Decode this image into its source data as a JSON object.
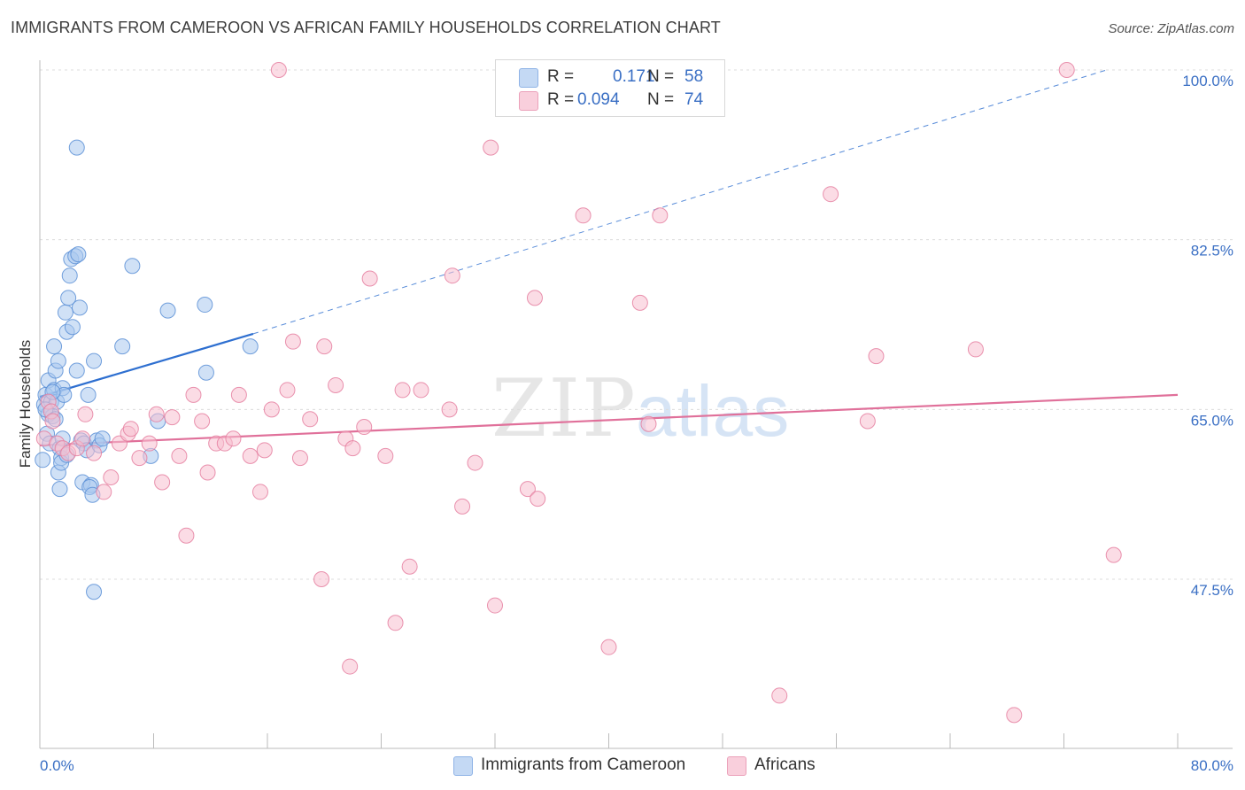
{
  "title": "IMMIGRANTS FROM CAMEROON VS AFRICAN FAMILY HOUSEHOLDS CORRELATION CHART",
  "source": "Source: ZipAtlas.com",
  "watermark": {
    "zip": "ZIP",
    "atlas": "atlas"
  },
  "legend": {
    "rows": [
      {
        "r_label": "R =",
        "r_value": "0.171",
        "n_label": "N =",
        "n_value": "58"
      },
      {
        "r_label": "R =",
        "r_value": "0.094",
        "n_label": "N =",
        "n_value": "74"
      }
    ]
  },
  "colors": {
    "blue_fill": "#aac8ef",
    "blue_stroke": "#5b8fd6",
    "blue_line": "#2e6fd0",
    "pink_fill": "#f7bfd0",
    "pink_stroke": "#e57fa0",
    "pink_line": "#e0709a",
    "tick_text": "#3a6fc4"
  },
  "chart_data": {
    "type": "scatter",
    "title": "IMMIGRANTS FROM CAMEROON VS AFRICAN FAMILY HOUSEHOLDS CORRELATION CHART",
    "xlabel": "",
    "ylabel": "Family Households",
    "xlim": [
      0,
      80
    ],
    "ylim": [
      30,
      101
    ],
    "x_tick_labels": [
      "0.0%",
      "80.0%"
    ],
    "y_ticks": [
      47.5,
      65.0,
      82.5,
      100.0
    ],
    "y_tick_labels": [
      "47.5%",
      "65.0%",
      "82.5%",
      "100.0%"
    ],
    "grid": "horizontal dashed",
    "legend_position": "top-center",
    "series": [
      {
        "name": "Immigrants from Cameroon",
        "color": "#aac8ef",
        "points": [
          [
            0.2,
            59.8
          ],
          [
            0.3,
            65.5
          ],
          [
            0.4,
            66.5
          ],
          [
            0.5,
            62.5
          ],
          [
            0.6,
            64.5
          ],
          [
            0.6,
            68.0
          ],
          [
            0.7,
            61.5
          ],
          [
            0.8,
            65.8
          ],
          [
            0.9,
            64.3
          ],
          [
            1.0,
            71.5
          ],
          [
            1.0,
            67.0
          ],
          [
            1.1,
            69.0
          ],
          [
            1.2,
            65.8
          ],
          [
            1.3,
            70.0
          ],
          [
            1.3,
            58.5
          ],
          [
            1.4,
            61.0
          ],
          [
            1.5,
            60.0
          ],
          [
            1.5,
            59.5
          ],
          [
            1.6,
            67.2
          ],
          [
            1.7,
            66.5
          ],
          [
            1.8,
            75.0
          ],
          [
            1.9,
            73.0
          ],
          [
            2.0,
            76.5
          ],
          [
            2.1,
            78.8
          ],
          [
            2.2,
            80.5
          ],
          [
            2.3,
            73.5
          ],
          [
            2.5,
            80.8
          ],
          [
            2.6,
            69.0
          ],
          [
            2.7,
            81.0
          ],
          [
            2.8,
            75.5
          ],
          [
            2.9,
            61.8
          ],
          [
            3.0,
            57.5
          ],
          [
            3.1,
            61.5
          ],
          [
            3.3,
            60.8
          ],
          [
            3.4,
            66.5
          ],
          [
            3.6,
            57.2
          ],
          [
            3.8,
            70.0
          ],
          [
            4.0,
            61.8
          ],
          [
            4.2,
            61.3
          ],
          [
            5.8,
            71.5
          ],
          [
            6.5,
            79.8
          ],
          [
            7.8,
            60.2
          ],
          [
            8.3,
            63.8
          ],
          [
            9.0,
            75.2
          ],
          [
            11.6,
            75.8
          ],
          [
            11.7,
            68.8
          ],
          [
            14.8,
            71.5
          ],
          [
            2.6,
            92.0
          ],
          [
            3.5,
            57.0
          ],
          [
            3.7,
            56.2
          ],
          [
            3.8,
            46.2
          ],
          [
            0.9,
            66.8
          ],
          [
            1.6,
            62.0
          ],
          [
            1.9,
            60.3
          ],
          [
            4.4,
            62.0
          ],
          [
            0.4,
            65.0
          ],
          [
            1.1,
            64.0
          ],
          [
            1.4,
            56.8
          ]
        ]
      },
      {
        "name": "Africans",
        "color": "#f7bfd0",
        "points": [
          [
            0.3,
            62.0
          ],
          [
            0.6,
            65.8
          ],
          [
            0.8,
            64.8
          ],
          [
            1.2,
            61.5
          ],
          [
            1.6,
            61.0
          ],
          [
            2.0,
            60.5
          ],
          [
            2.6,
            61.0
          ],
          [
            3.0,
            62.0
          ],
          [
            3.2,
            64.5
          ],
          [
            3.8,
            60.5
          ],
          [
            4.5,
            56.5
          ],
          [
            5.0,
            58.0
          ],
          [
            5.6,
            61.5
          ],
          [
            6.2,
            62.5
          ],
          [
            6.4,
            63.0
          ],
          [
            7.0,
            60.0
          ],
          [
            7.7,
            61.5
          ],
          [
            8.2,
            64.5
          ],
          [
            8.6,
            57.5
          ],
          [
            9.3,
            64.2
          ],
          [
            9.8,
            60.2
          ],
          [
            10.3,
            52.0
          ],
          [
            10.8,
            66.5
          ],
          [
            11.4,
            63.8
          ],
          [
            11.8,
            58.5
          ],
          [
            12.4,
            61.5
          ],
          [
            13.0,
            61.5
          ],
          [
            13.6,
            62.0
          ],
          [
            14.0,
            66.5
          ],
          [
            14.8,
            60.2
          ],
          [
            15.5,
            56.5
          ],
          [
            15.8,
            60.8
          ],
          [
            16.3,
            65.0
          ],
          [
            17.4,
            67.0
          ],
          [
            17.8,
            72.0
          ],
          [
            18.3,
            60.0
          ],
          [
            19.0,
            64.0
          ],
          [
            19.8,
            47.5
          ],
          [
            20.0,
            71.5
          ],
          [
            20.8,
            67.5
          ],
          [
            21.5,
            62.0
          ],
          [
            21.8,
            38.5
          ],
          [
            22.0,
            61.0
          ],
          [
            22.8,
            63.2
          ],
          [
            23.2,
            78.5
          ],
          [
            24.3,
            60.2
          ],
          [
            25.0,
            43.0
          ],
          [
            25.5,
            67.0
          ],
          [
            26.0,
            48.8
          ],
          [
            26.8,
            67.0
          ],
          [
            28.8,
            65.0
          ],
          [
            29.0,
            78.8
          ],
          [
            29.7,
            55.0
          ],
          [
            30.6,
            59.5
          ],
          [
            31.7,
            92.0
          ],
          [
            32.0,
            44.8
          ],
          [
            34.3,
            56.8
          ],
          [
            34.8,
            76.5
          ],
          [
            35.0,
            55.8
          ],
          [
            38.2,
            85.0
          ],
          [
            40.0,
            40.5
          ],
          [
            42.2,
            76.0
          ],
          [
            42.8,
            63.5
          ],
          [
            43.6,
            85.0
          ],
          [
            52.0,
            35.5
          ],
          [
            55.6,
            87.2
          ],
          [
            58.2,
            63.8
          ],
          [
            58.8,
            70.5
          ],
          [
            65.8,
            71.2
          ],
          [
            68.5,
            33.5
          ],
          [
            72.2,
            100.0
          ],
          [
            75.5,
            50.0
          ],
          [
            16.8,
            100.0
          ],
          [
            0.9,
            63.8
          ]
        ]
      }
    ],
    "trendlines": [
      {
        "series": "Immigrants from Cameroon",
        "x0": 0.0,
        "y0": 66.3,
        "x1": 15.0,
        "y1": 72.8,
        "dashed_to_x": 75.0,
        "dashed_to_y": 100.0
      },
      {
        "series": "Africans",
        "x0": 0.0,
        "y0": 61.3,
        "x1": 80.0,
        "y1": 66.5
      }
    ]
  }
}
